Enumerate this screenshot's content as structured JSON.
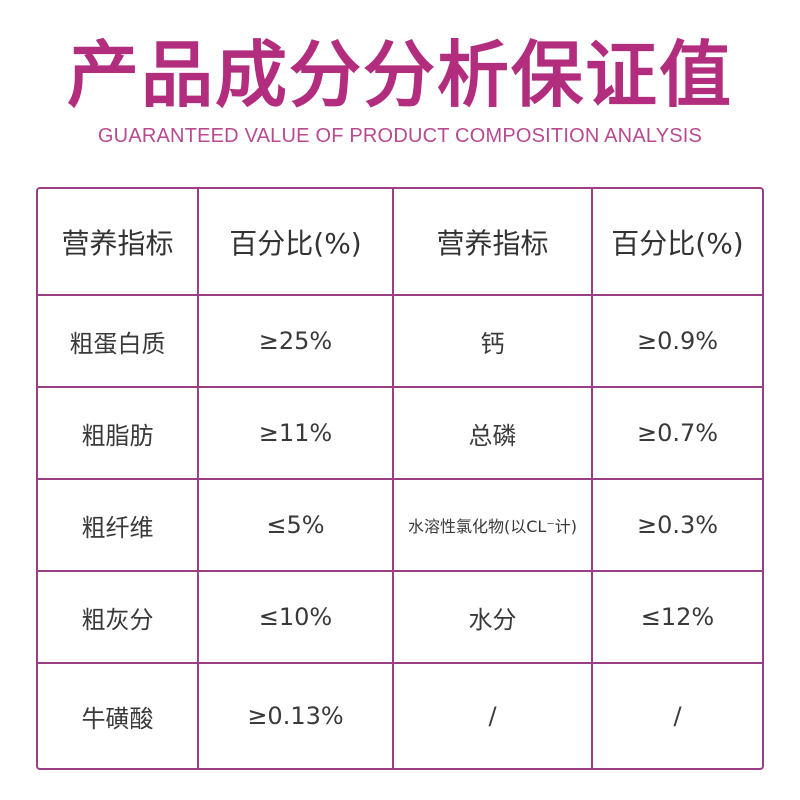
{
  "title": "产品成分分析保证值",
  "subtitle": "GUARANTEED VALUE OF PRODUCT COMPOSITION ANALYSIS",
  "table": {
    "headers": [
      "营养指标",
      "百分比(%)",
      "营养指标",
      "百分比(%)"
    ],
    "rows": [
      [
        "粗蛋白质",
        "≥25%",
        "钙",
        "≥0.9%"
      ],
      [
        "粗脂肪",
        "≥11%",
        "总磷",
        "≥0.7%"
      ],
      [
        "粗纤维",
        "≤5%",
        "水溶性氯化物(以CL⁻计)",
        "≥0.3%"
      ],
      [
        "粗灰分",
        "≤10%",
        "水分",
        "≤12%"
      ],
      [
        "牛磺酸",
        "≥0.13%",
        "/",
        "/"
      ]
    ]
  },
  "colors": {
    "accent": "#b22d7d",
    "border": "#9a3f84",
    "text": "#3a3a3a"
  }
}
